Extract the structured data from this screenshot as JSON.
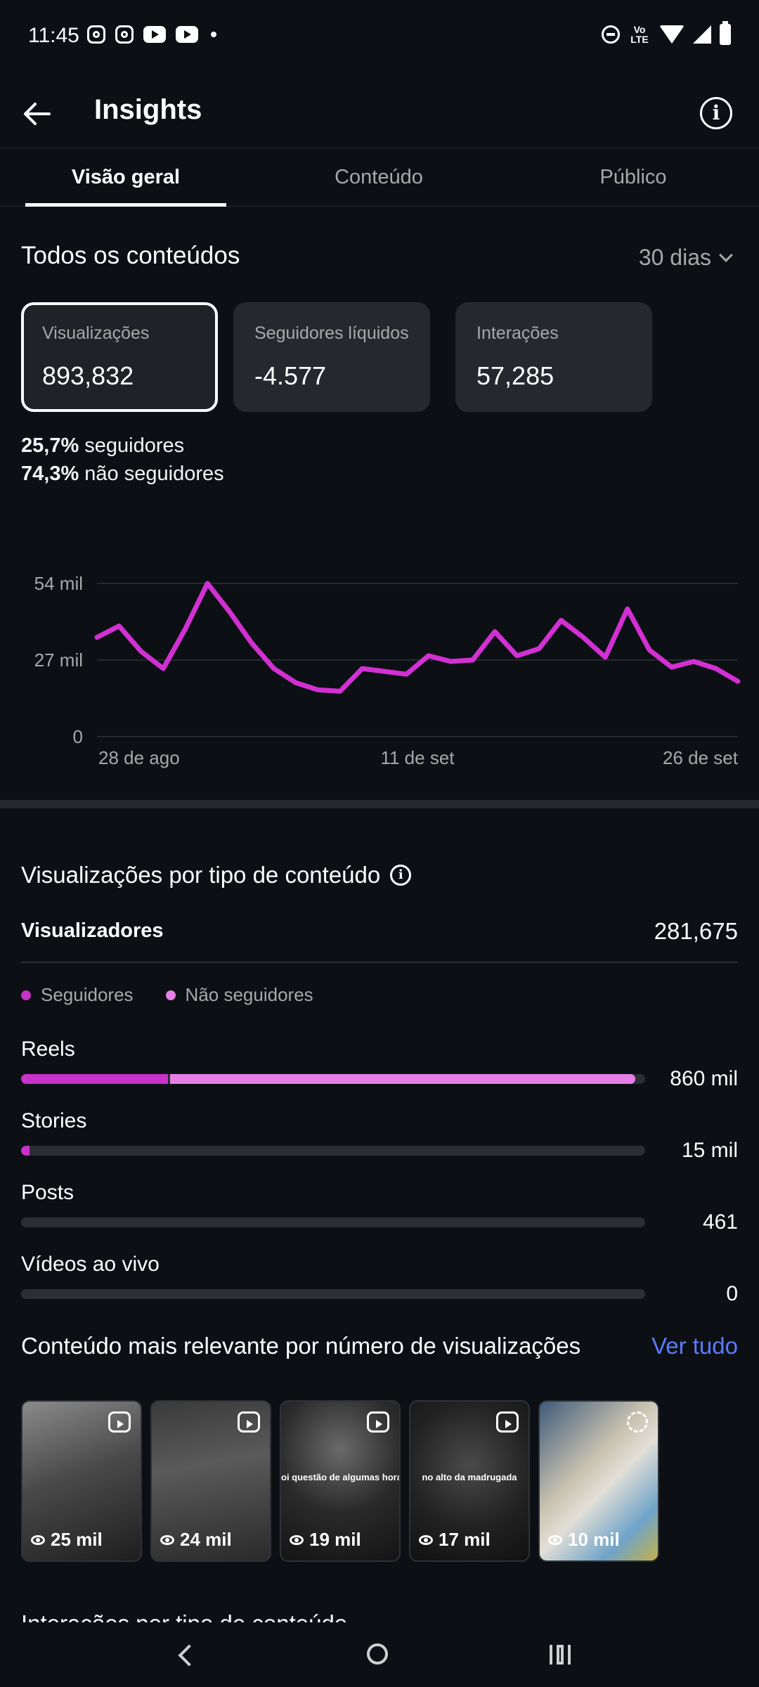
{
  "status_bar": {
    "time": "11:45",
    "network": "Vo LTE"
  },
  "header": {
    "title": "Insights"
  },
  "tabs": [
    {
      "label": "Visão geral",
      "active": true
    },
    {
      "label": "Conteúdo",
      "active": false
    },
    {
      "label": "Público",
      "active": false
    }
  ],
  "overview": {
    "title": "Todos os conteúdos",
    "period": "30 dias",
    "cards": [
      {
        "label": "Visualizações",
        "value": "893,832",
        "selected": true
      },
      {
        "label": "Seguidores líquidos",
        "value": "-4.577",
        "selected": false
      },
      {
        "label": "Interações",
        "value": "57,285",
        "selected": false
      }
    ],
    "followers_pct": "25,7%",
    "followers_label": "seguidores",
    "non_followers_pct": "74,3%",
    "non_followers_label": "não seguidores"
  },
  "chart_data": {
    "type": "line",
    "y_ticks": [
      "54 mil",
      "27 mil",
      "0"
    ],
    "ylim": [
      0,
      54000
    ],
    "x_ticks": [
      "28 de ago",
      "11 de set",
      "26 de set"
    ],
    "line_color": "#d230d3",
    "grid": true,
    "values": [
      35000,
      39000,
      30000,
      24000,
      38000,
      54000,
      44000,
      33000,
      24000,
      19000,
      16500,
      16000,
      24000,
      23000,
      22000,
      28500,
      26500,
      27000,
      37000,
      28500,
      31000,
      41000,
      35000,
      28000,
      45000,
      30500,
      24500,
      26500,
      24000,
      19500
    ]
  },
  "by_type": {
    "title": "Visualizações por tipo de conteúdo",
    "viewers_label": "Visualizadores",
    "viewers_value": "281,675",
    "legend": [
      {
        "label": "Seguidores",
        "color": "#c732c8"
      },
      {
        "label": "Não seguidores",
        "color": "#e57fe6"
      }
    ],
    "rows": [
      {
        "label": "Reels",
        "value": "860 mil",
        "followers_frac": 0.235,
        "non_followers_frac": 0.745
      },
      {
        "label": "Stories",
        "value": "15 mil",
        "followers_frac": 0.014,
        "non_followers_frac": 0.0
      },
      {
        "label": "Posts",
        "value": "461",
        "followers_frac": 0.0,
        "non_followers_frac": 0.0
      },
      {
        "label": "Vídeos ao vivo",
        "value": "0",
        "followers_frac": 0.0,
        "non_followers_frac": 0.0
      }
    ]
  },
  "top_content": {
    "title": "Conteúdo mais relevante por número de visualizações",
    "see_all": "Ver tudo",
    "items": [
      {
        "views": "25 mil",
        "icon": "reel-icon",
        "caption": ""
      },
      {
        "views": "24 mil",
        "icon": "reel-icon",
        "caption": ""
      },
      {
        "views": "19 mil",
        "icon": "reel-icon",
        "caption": "oi questão de algumas hora"
      },
      {
        "views": "17 mil",
        "icon": "reel-icon",
        "caption": "no alto da madrugada"
      },
      {
        "views": "10 mil",
        "icon": "carousel-icon",
        "caption": ""
      }
    ]
  },
  "next_section": {
    "title": "Interações por tipo de conteúdo"
  }
}
